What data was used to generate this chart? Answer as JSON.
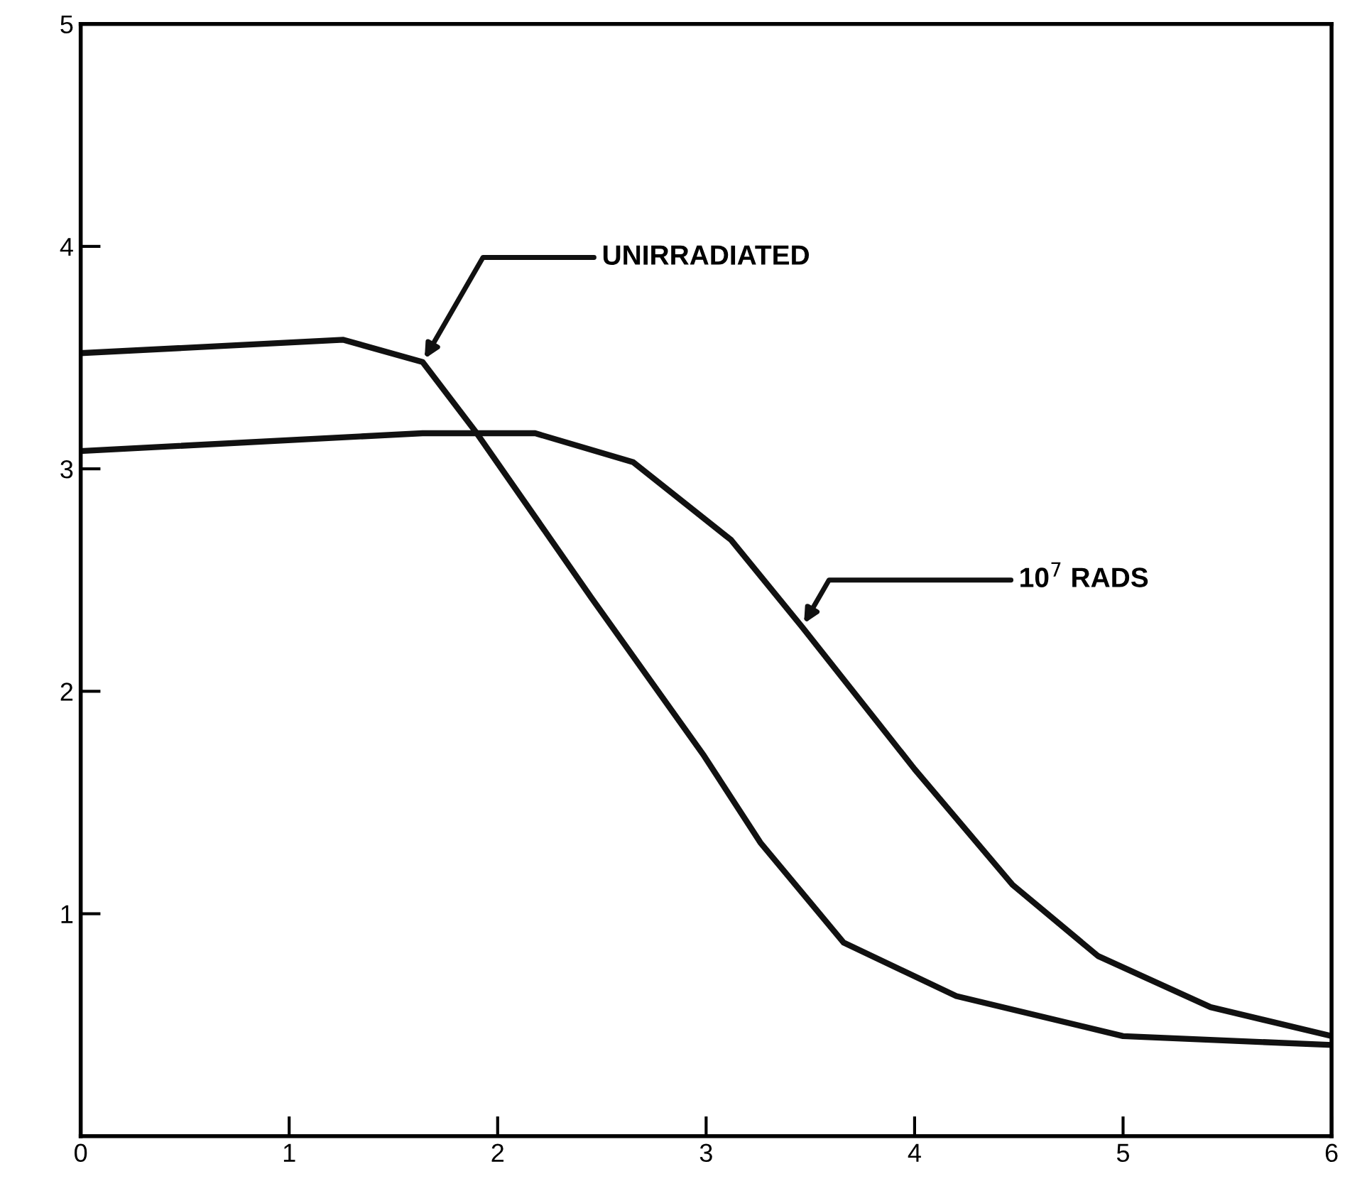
{
  "chart_data": {
    "type": "line",
    "xlim": [
      0,
      6
    ],
    "ylim": [
      0,
      5
    ],
    "xticks": [
      0,
      1,
      2,
      3,
      4,
      5,
      6
    ],
    "yticks": [
      1,
      2,
      3,
      4,
      5
    ],
    "grid": false,
    "marker": "none",
    "line_style": "solid",
    "series": [
      {
        "color": "#111111",
        "x": [
          0,
          1.26,
          1.64,
          1.9,
          2.45,
          2.99,
          3.26,
          3.66,
          4.2,
          5.0,
          6.0
        ],
        "values": [
          3.52,
          3.58,
          3.48,
          3.16,
          2.42,
          1.71,
          1.32,
          0.87,
          0.63,
          0.45,
          0.41
        ]
      },
      {
        "color": "#111111",
        "x": [
          0,
          1.64,
          2.18,
          2.65,
          3.12,
          3.46,
          4.0,
          4.47,
          4.88,
          5.42,
          6.0
        ],
        "values": [
          3.08,
          3.16,
          3.16,
          3.03,
          2.68,
          2.29,
          1.65,
          1.13,
          0.81,
          0.58,
          0.45
        ]
      }
    ],
    "annotations": [
      {
        "text": "UNIRRADIATED",
        "x": 1.64,
        "y": 3.48
      },
      {
        "text": "10$^{7}$ RADS",
        "x": 3.46,
        "y": 2.29
      }
    ]
  }
}
